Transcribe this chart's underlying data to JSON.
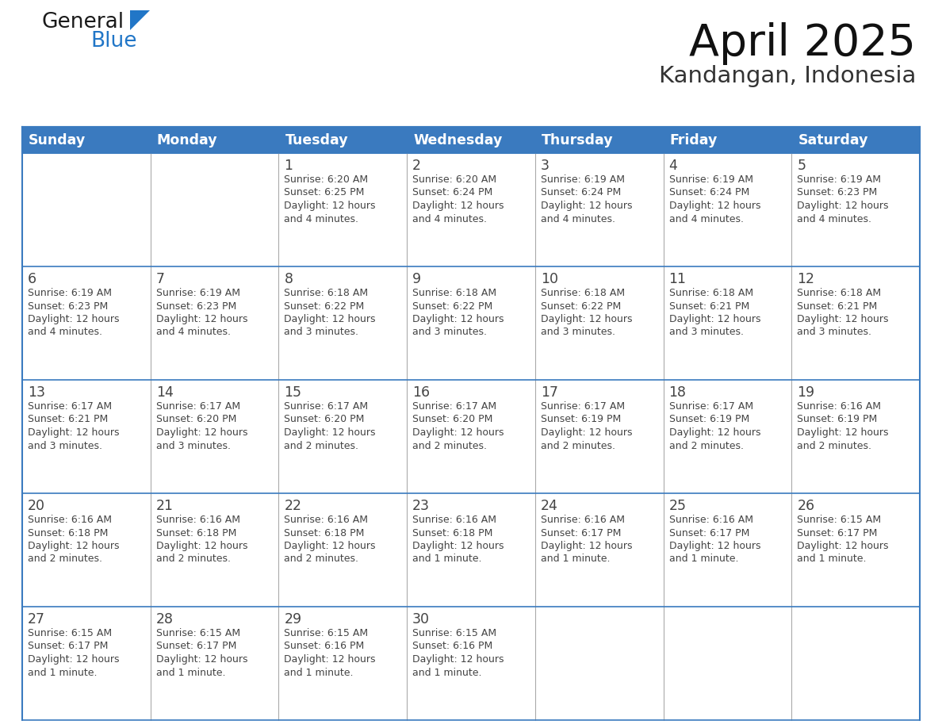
{
  "title": "April 2025",
  "subtitle": "Kandangan, Indonesia",
  "header_bg": "#3a7abf",
  "header_text": "#ffffff",
  "border_color": "#3a7abf",
  "row_line_color": "#3a7abf",
  "col_line_color": "#aaaaaa",
  "text_color": "#444444",
  "days_of_week": [
    "Sunday",
    "Monday",
    "Tuesday",
    "Wednesday",
    "Thursday",
    "Friday",
    "Saturday"
  ],
  "logo_general_color": "#1a1a1a",
  "logo_blue_color": "#2176c7",
  "calendar_data": [
    [
      {
        "day": null,
        "sunrise": null,
        "sunset": null,
        "daylight": null
      },
      {
        "day": null,
        "sunrise": null,
        "sunset": null,
        "daylight": null
      },
      {
        "day": 1,
        "sunrise": "6:20 AM",
        "sunset": "6:25 PM",
        "daylight": "12 hours and 4 minutes."
      },
      {
        "day": 2,
        "sunrise": "6:20 AM",
        "sunset": "6:24 PM",
        "daylight": "12 hours and 4 minutes."
      },
      {
        "day": 3,
        "sunrise": "6:19 AM",
        "sunset": "6:24 PM",
        "daylight": "12 hours and 4 minutes."
      },
      {
        "day": 4,
        "sunrise": "6:19 AM",
        "sunset": "6:24 PM",
        "daylight": "12 hours and 4 minutes."
      },
      {
        "day": 5,
        "sunrise": "6:19 AM",
        "sunset": "6:23 PM",
        "daylight": "12 hours and 4 minutes."
      }
    ],
    [
      {
        "day": 6,
        "sunrise": "6:19 AM",
        "sunset": "6:23 PM",
        "daylight": "12 hours and 4 minutes."
      },
      {
        "day": 7,
        "sunrise": "6:19 AM",
        "sunset": "6:23 PM",
        "daylight": "12 hours and 4 minutes."
      },
      {
        "day": 8,
        "sunrise": "6:18 AM",
        "sunset": "6:22 PM",
        "daylight": "12 hours and 3 minutes."
      },
      {
        "day": 9,
        "sunrise": "6:18 AM",
        "sunset": "6:22 PM",
        "daylight": "12 hours and 3 minutes."
      },
      {
        "day": 10,
        "sunrise": "6:18 AM",
        "sunset": "6:22 PM",
        "daylight": "12 hours and 3 minutes."
      },
      {
        "day": 11,
        "sunrise": "6:18 AM",
        "sunset": "6:21 PM",
        "daylight": "12 hours and 3 minutes."
      },
      {
        "day": 12,
        "sunrise": "6:18 AM",
        "sunset": "6:21 PM",
        "daylight": "12 hours and 3 minutes."
      }
    ],
    [
      {
        "day": 13,
        "sunrise": "6:17 AM",
        "sunset": "6:21 PM",
        "daylight": "12 hours and 3 minutes."
      },
      {
        "day": 14,
        "sunrise": "6:17 AM",
        "sunset": "6:20 PM",
        "daylight": "12 hours and 3 minutes."
      },
      {
        "day": 15,
        "sunrise": "6:17 AM",
        "sunset": "6:20 PM",
        "daylight": "12 hours and 2 minutes."
      },
      {
        "day": 16,
        "sunrise": "6:17 AM",
        "sunset": "6:20 PM",
        "daylight": "12 hours and 2 minutes."
      },
      {
        "day": 17,
        "sunrise": "6:17 AM",
        "sunset": "6:19 PM",
        "daylight": "12 hours and 2 minutes."
      },
      {
        "day": 18,
        "sunrise": "6:17 AM",
        "sunset": "6:19 PM",
        "daylight": "12 hours and 2 minutes."
      },
      {
        "day": 19,
        "sunrise": "6:16 AM",
        "sunset": "6:19 PM",
        "daylight": "12 hours and 2 minutes."
      }
    ],
    [
      {
        "day": 20,
        "sunrise": "6:16 AM",
        "sunset": "6:18 PM",
        "daylight": "12 hours and 2 minutes."
      },
      {
        "day": 21,
        "sunrise": "6:16 AM",
        "sunset": "6:18 PM",
        "daylight": "12 hours and 2 minutes."
      },
      {
        "day": 22,
        "sunrise": "6:16 AM",
        "sunset": "6:18 PM",
        "daylight": "12 hours and 2 minutes."
      },
      {
        "day": 23,
        "sunrise": "6:16 AM",
        "sunset": "6:18 PM",
        "daylight": "12 hours and 1 minute."
      },
      {
        "day": 24,
        "sunrise": "6:16 AM",
        "sunset": "6:17 PM",
        "daylight": "12 hours and 1 minute."
      },
      {
        "day": 25,
        "sunrise": "6:16 AM",
        "sunset": "6:17 PM",
        "daylight": "12 hours and 1 minute."
      },
      {
        "day": 26,
        "sunrise": "6:15 AM",
        "sunset": "6:17 PM",
        "daylight": "12 hours and 1 minute."
      }
    ],
    [
      {
        "day": 27,
        "sunrise": "6:15 AM",
        "sunset": "6:17 PM",
        "daylight": "12 hours and 1 minute."
      },
      {
        "day": 28,
        "sunrise": "6:15 AM",
        "sunset": "6:17 PM",
        "daylight": "12 hours and 1 minute."
      },
      {
        "day": 29,
        "sunrise": "6:15 AM",
        "sunset": "6:16 PM",
        "daylight": "12 hours and 1 minute."
      },
      {
        "day": 30,
        "sunrise": "6:15 AM",
        "sunset": "6:16 PM",
        "daylight": "12 hours and 1 minute."
      },
      {
        "day": null,
        "sunrise": null,
        "sunset": null,
        "daylight": null
      },
      {
        "day": null,
        "sunrise": null,
        "sunset": null,
        "daylight": null
      },
      {
        "day": null,
        "sunrise": null,
        "sunset": null,
        "daylight": null
      }
    ]
  ]
}
